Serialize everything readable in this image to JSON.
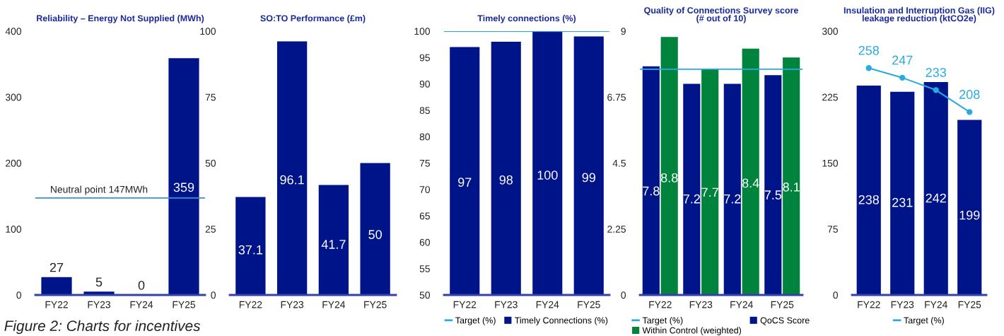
{
  "chart_data": [
    {
      "type": "bar",
      "title": "Reliability – Energy Not Supplied (MWh)",
      "categories": [
        "FY22",
        "FY23",
        "FY24",
        "FY25"
      ],
      "series": [
        {
          "color": "#001489",
          "values": [
            27,
            5,
            0,
            359
          ]
        }
      ],
      "ylim": [
        0,
        400
      ],
      "yticks": [
        0,
        100,
        200,
        300,
        400
      ],
      "data_labels": true,
      "ref_lines": [
        {
          "axis": "y",
          "value": 147,
          "label": "Neutral point 147MWh",
          "color": "#3a8fd6"
        }
      ],
      "annotations": [
        "Figure 2: Charts for incentives"
      ]
    },
    {
      "type": "bar",
      "title": "SO:TO Performance (£m)",
      "categories": [
        "FY22",
        "FY23",
        "FY24",
        "FY25"
      ],
      "series": [
        {
          "color": "#001489",
          "values": [
            37.1,
            96.1,
            41.7,
            50
          ]
        }
      ],
      "ylim": [
        0,
        100
      ],
      "yticks": [
        0,
        25,
        50,
        75,
        100
      ],
      "data_labels": true
    },
    {
      "type": "bar",
      "title": "Timely connections (%)",
      "categories": [
        "FY22",
        "FY23",
        "FY24",
        "FY25"
      ],
      "series": [
        {
          "name": "Timely Connections (%)",
          "color": "#001489",
          "values": [
            97,
            98,
            100,
            99
          ]
        }
      ],
      "ylim": [
        50,
        100
      ],
      "yticks": [
        50,
        55,
        60,
        65,
        70,
        75,
        80,
        85,
        90,
        95,
        100
      ],
      "data_labels": true,
      "ref_lines": [
        {
          "axis": "y",
          "value": 100,
          "label": "Target (%)",
          "color": "#29abe2"
        }
      ],
      "legend": "bottom"
    },
    {
      "type": "bar",
      "title": "Quality of Connections Survey score\n(# out of 10)",
      "categories": [
        "FY22",
        "FY23",
        "FY24",
        "FY25"
      ],
      "series": [
        {
          "name": "QoCS Score",
          "color": "#001489",
          "values": [
            7.8,
            7.2,
            7.2,
            7.5
          ]
        },
        {
          "name": "Within Control (weighted)",
          "color": "#00843d",
          "values": [
            8.8,
            7.7,
            8.4,
            8.1
          ]
        }
      ],
      "ylim": [
        0,
        9
      ],
      "yticks": [
        0,
        2.25,
        4.5,
        6.75,
        9
      ],
      "data_labels": true,
      "ref_lines": [
        {
          "axis": "y",
          "value": 7.7,
          "label": "Target (%)",
          "color": "#29abe2"
        }
      ],
      "legend": "bottom"
    },
    {
      "type": "bar",
      "title": "Insulation and Interruption Gas (IIG)\nleakage reduction (ktCO2e)",
      "categories": [
        "FY22",
        "FY23",
        "FY24",
        "FY25"
      ],
      "series": [
        {
          "color": "#001489",
          "values": [
            238,
            231,
            242,
            199
          ]
        },
        {
          "type": "line",
          "name": "Target (%)",
          "color": "#29abe2",
          "values": [
            258,
            247,
            233,
            208
          ],
          "marker": "circle"
        }
      ],
      "ylim": [
        0,
        300
      ],
      "yticks": [
        0,
        75,
        150,
        225,
        300
      ],
      "data_labels": true,
      "legend": "bottom"
    }
  ]
}
